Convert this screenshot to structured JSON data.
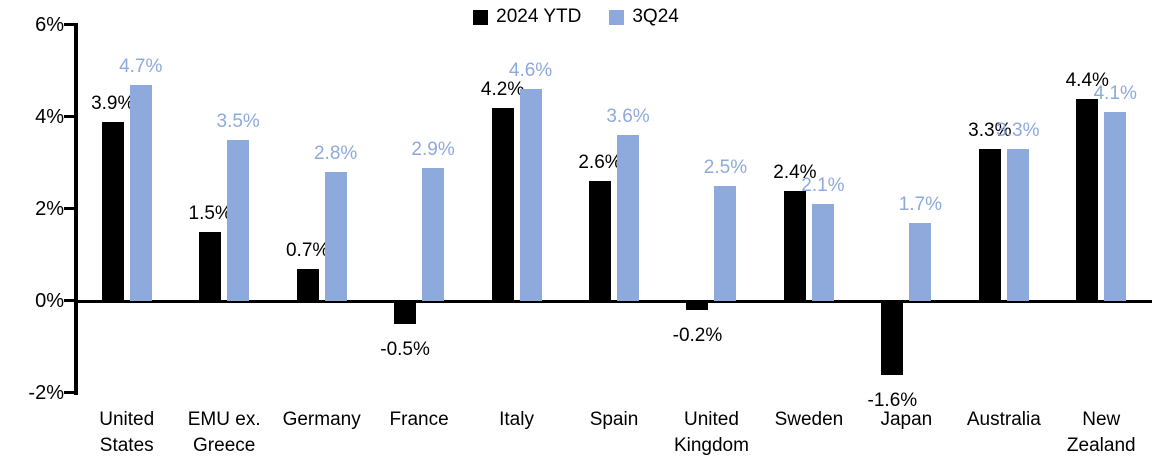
{
  "chart_data": {
    "type": "bar",
    "title": "",
    "xlabel": "",
    "ylabel": "",
    "ylim": [
      -2,
      6
    ],
    "grid": false,
    "legend_position": "top-center",
    "categories": [
      "United\nStates",
      "EMU ex.\nGreece",
      "Germany",
      "France",
      "Italy",
      "Spain",
      "United\nKingdom",
      "Sweden",
      "Japan",
      "Australia",
      "New\nZealand"
    ],
    "series": [
      {
        "name": "2024 YTD",
        "color": "#000000",
        "values": [
          3.9,
          1.5,
          0.7,
          -0.5,
          4.2,
          2.6,
          -0.2,
          2.4,
          -1.6,
          3.3,
          4.4
        ],
        "labels": [
          "3.9%",
          "1.5%",
          "0.7%",
          "-0.5%",
          "4.2%",
          "2.6%",
          "-0.2%",
          "2.4%",
          "-1.6%",
          "3.3%",
          "4.4%"
        ]
      },
      {
        "name": "3Q24",
        "color": "#8EA9DB",
        "values": [
          4.7,
          3.5,
          2.8,
          2.9,
          4.6,
          3.6,
          2.5,
          2.1,
          1.7,
          3.3,
          4.1
        ],
        "labels": [
          "4.7%",
          "3.5%",
          "2.8%",
          "2.9%",
          "4.6%",
          "3.6%",
          "2.5%",
          "2.1%",
          "1.7%",
          "3.3%",
          "4.1%"
        ]
      }
    ],
    "y_ticks": [
      {
        "value": 6,
        "label": "6%"
      },
      {
        "value": 4,
        "label": "4%"
      },
      {
        "value": 2,
        "label": "2%"
      },
      {
        "value": 0,
        "label": "0%"
      },
      {
        "value": -2,
        "label": "-2%"
      }
    ]
  }
}
